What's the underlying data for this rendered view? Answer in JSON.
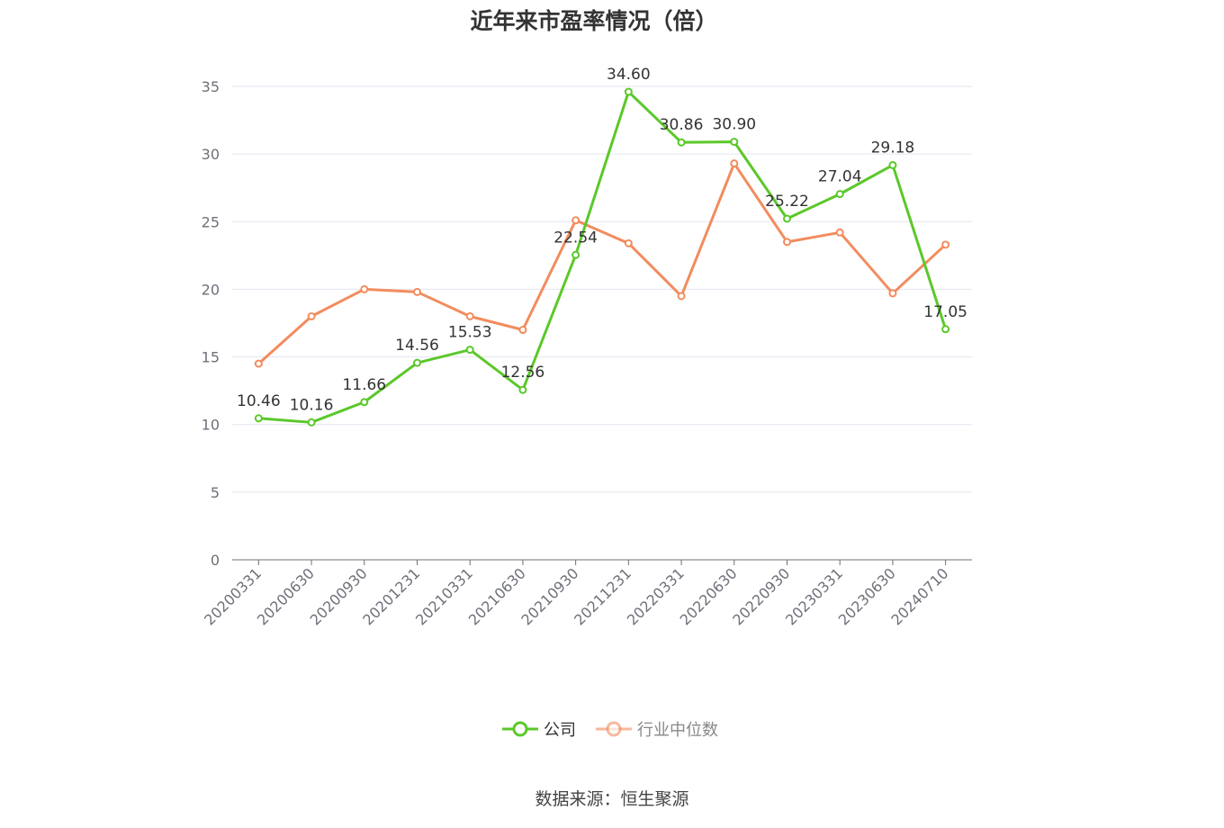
{
  "chart_data": {
    "type": "line",
    "title": "近年来市盈率情况（倍）",
    "categories": [
      "20200331",
      "20200630",
      "20200930",
      "20201231",
      "20210331",
      "20210630",
      "20210930",
      "20211231",
      "20220331",
      "20220630",
      "20220930",
      "20230331",
      "20230630",
      "20240710"
    ],
    "series": [
      {
        "name": "公司",
        "color": "#5bc82a",
        "show_labels": true,
        "values": [
          10.46,
          10.16,
          11.66,
          14.56,
          15.53,
          12.56,
          22.54,
          34.6,
          30.86,
          30.9,
          25.22,
          27.04,
          29.18,
          17.05
        ]
      },
      {
        "name": "行业中位数",
        "color": "#f28c5e",
        "show_labels": false,
        "values": [
          14.5,
          18.0,
          20.0,
          19.8,
          18.0,
          17.0,
          25.1,
          23.4,
          19.5,
          29.3,
          23.5,
          24.2,
          19.7,
          23.3
        ]
      }
    ],
    "yticks": [
      0,
      5,
      10,
      15,
      20,
      25,
      30,
      35
    ],
    "ylim": [
      0,
      35
    ],
    "grid": true,
    "legend_position": "bottom-center"
  },
  "source": "数据来源：恒生聚源"
}
